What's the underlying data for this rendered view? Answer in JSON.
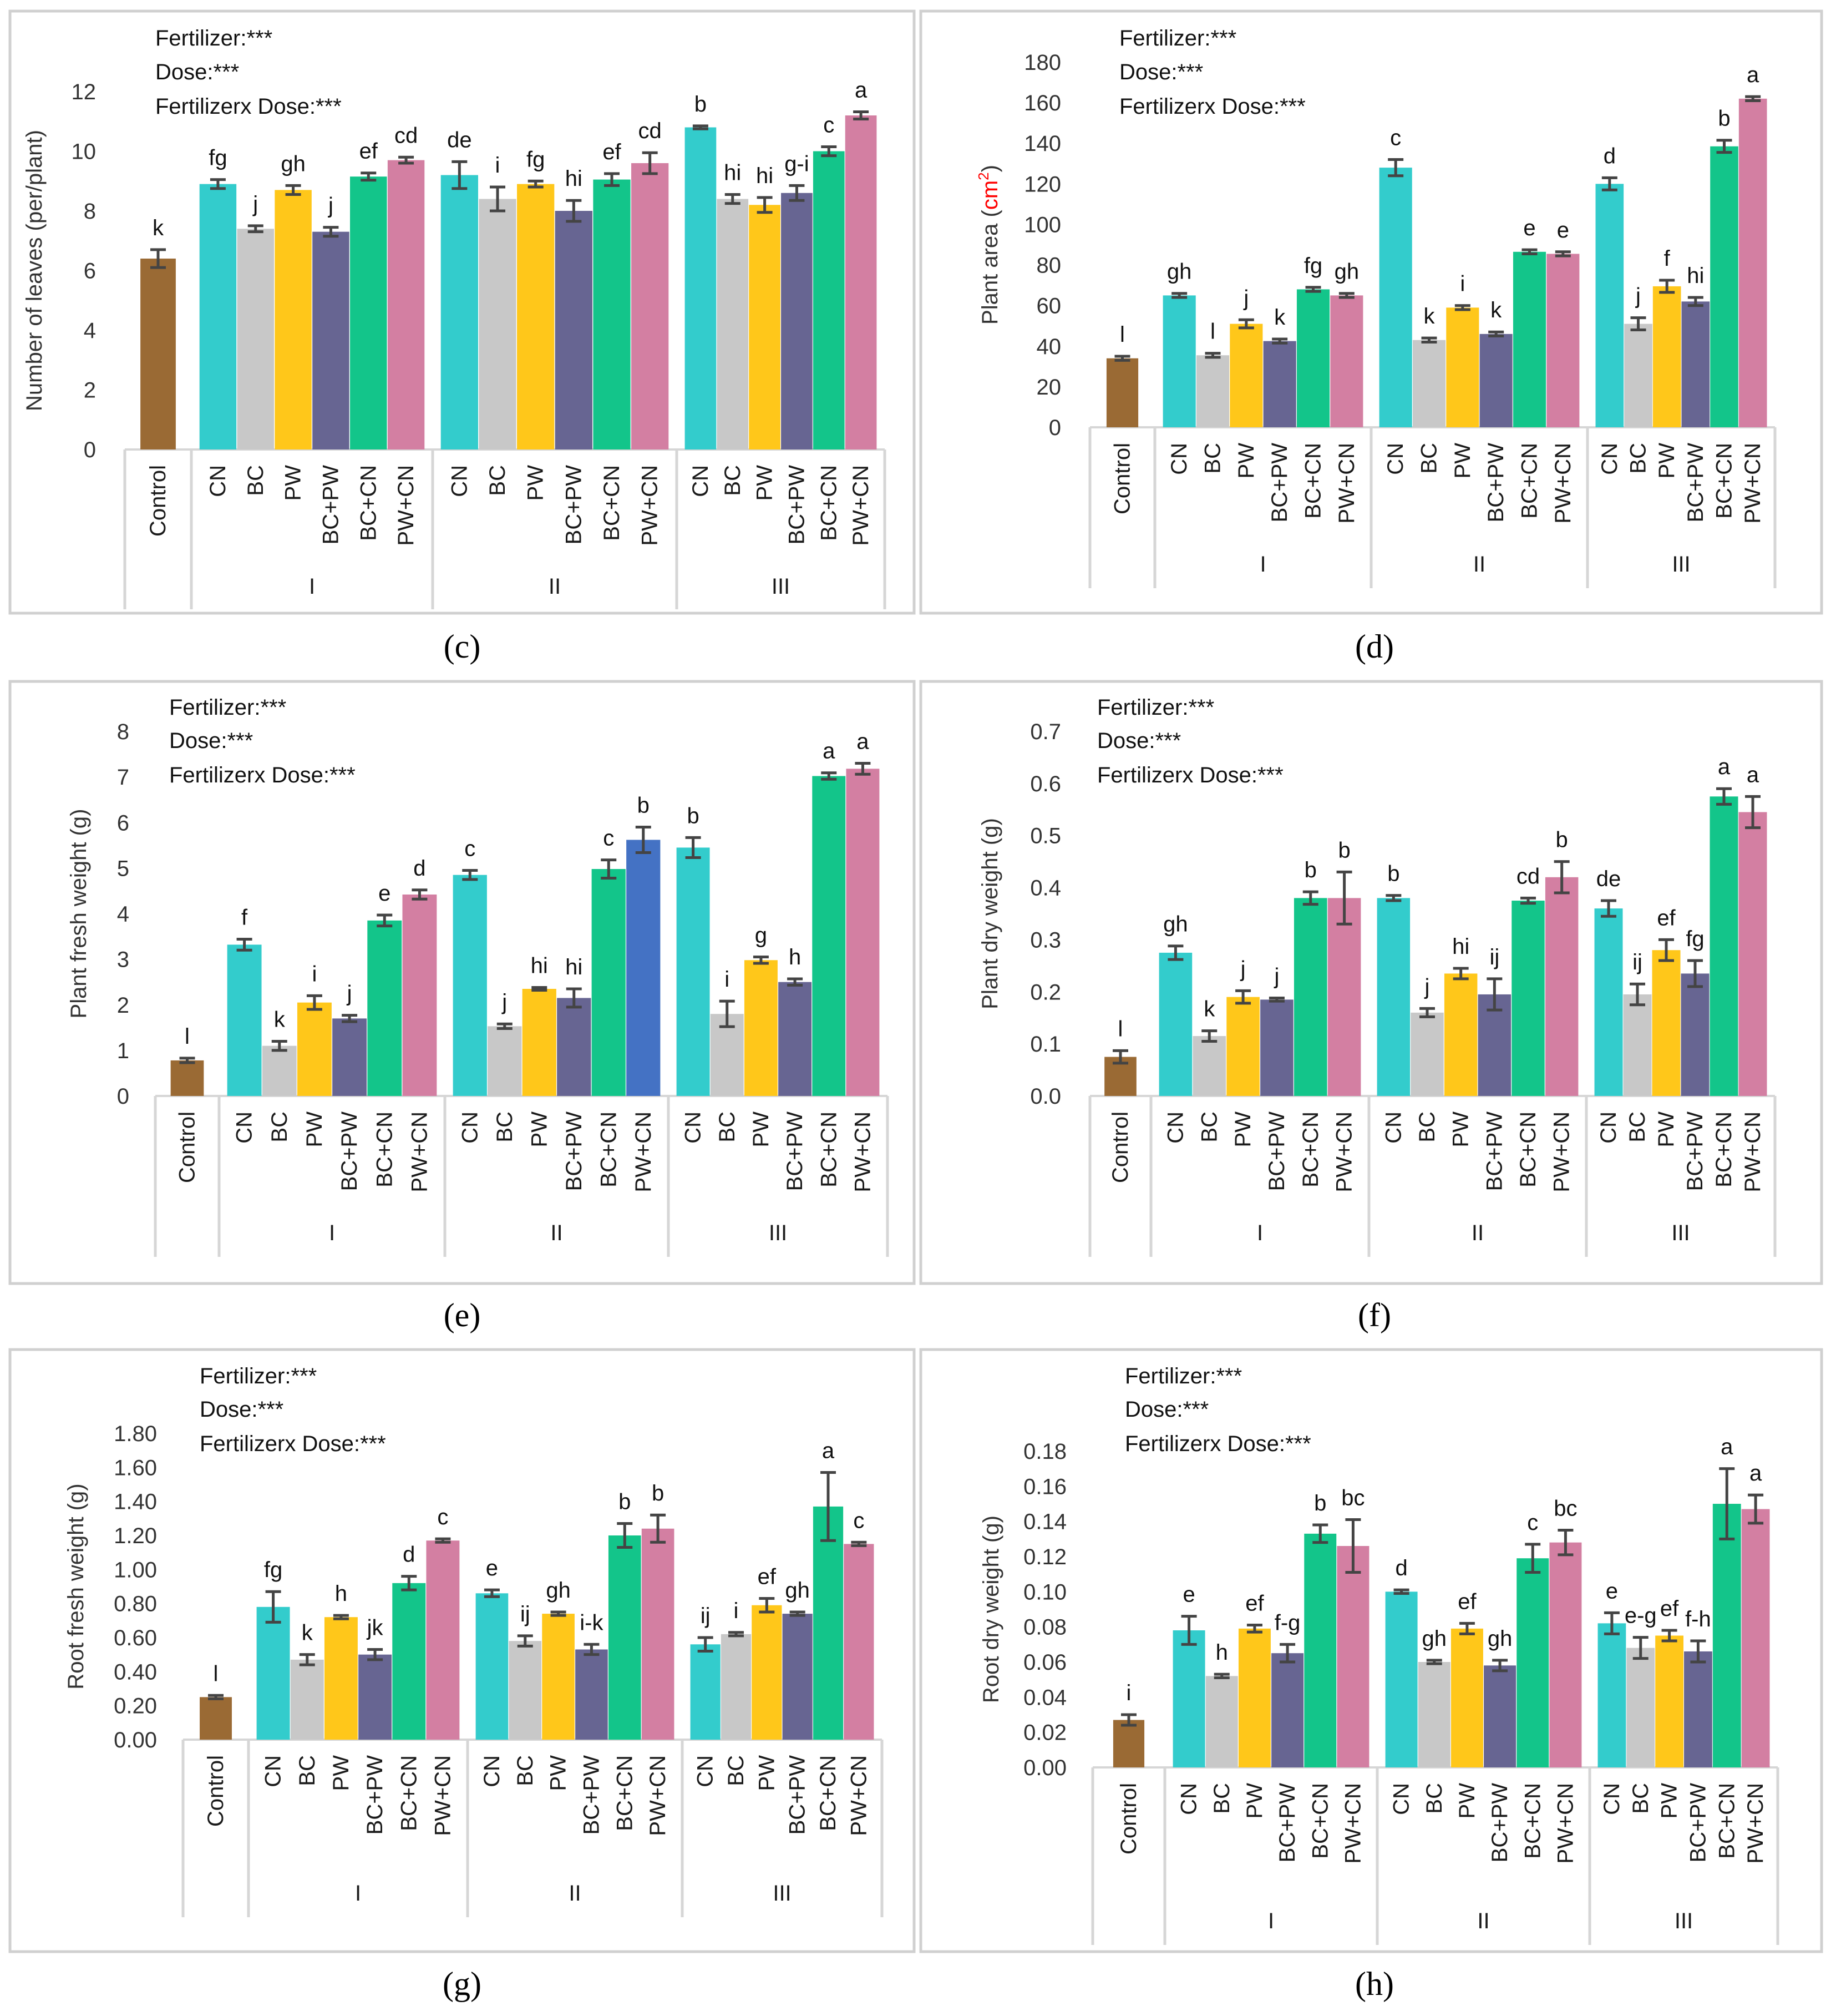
{
  "figure": {
    "panel_letters": [
      "(c)",
      "(d)",
      "(e)",
      "(f)",
      "(g)",
      "(h)"
    ]
  },
  "colors": {
    "Control": "#9a6a34",
    "CN": "#33cccc",
    "BC": "#c8c8c8",
    "PW": "#ffc71a",
    "BC+PW": "#676592",
    "BC+CN": "#13c58a",
    "PW+CN": "#d37fa2",
    "PW+CN_II_fresh": "#4472c4",
    "bar_error": "#444444"
  },
  "chart_data": [
    {
      "type": "bar",
      "panel": "(c)",
      "title": "",
      "ylabel": "Number of leaves (per/plant)",
      "ylim": [
        0,
        12
      ],
      "yticks": [
        "0",
        "2",
        "4",
        "6",
        "8",
        "10",
        "12"
      ],
      "stats": [
        "Fertilizer:***",
        "Dose:***",
        "Fertilizerx Dose:***"
      ],
      "control": {
        "label": "Control",
        "value": 6.4,
        "err": 0.3,
        "letter": "k"
      },
      "categories": [
        "CN",
        "BC",
        "PW",
        "BC+PW",
        "BC+CN",
        "PW+CN"
      ],
      "groups": [
        {
          "name": "I",
          "values": [
            8.9,
            7.4,
            8.7,
            7.3,
            9.15,
            9.7
          ],
          "errors": [
            0.15,
            0.1,
            0.15,
            0.15,
            0.12,
            0.1
          ],
          "letters": [
            "fg",
            "j",
            "gh",
            "j",
            "ef",
            "cd"
          ]
        },
        {
          "name": "II",
          "values": [
            9.2,
            8.4,
            8.9,
            8.0,
            9.05,
            9.6
          ],
          "errors": [
            0.45,
            0.4,
            0.1,
            0.35,
            0.2,
            0.35
          ],
          "letters": [
            "de",
            "i",
            "fg",
            "hi",
            "ef",
            "cd"
          ]
        },
        {
          "name": "III",
          "values": [
            10.8,
            8.4,
            8.2,
            8.6,
            10.0,
            11.2
          ],
          "errors": [
            0.05,
            0.15,
            0.25,
            0.25,
            0.15,
            0.12
          ],
          "letters": [
            "b",
            "hi",
            "hi",
            "g-i",
            "c",
            "a"
          ]
        }
      ]
    },
    {
      "type": "bar",
      "panel": "(d)",
      "title": "",
      "ylabel": "Plant area (",
      "ylabel_unit": "cm",
      "ylabel_sup": "2",
      "ylabel_close": ")",
      "ylim": [
        0,
        180
      ],
      "yticks": [
        "0",
        "20",
        "40",
        "60",
        "80",
        "100",
        "120",
        "140",
        "160",
        "180"
      ],
      "stats": [
        "Fertilizer:***",
        "Dose:***",
        "Fertilizerx Dose:***"
      ],
      "control": {
        "label": "Control",
        "value": 34,
        "err": 1,
        "letter": "l"
      },
      "categories": [
        "CN",
        "BC",
        "PW",
        "BC+PW",
        "BC+CN",
        "PW+CN"
      ],
      "groups": [
        {
          "name": "I",
          "values": [
            65,
            35.5,
            51,
            42.5,
            68,
            65
          ],
          "errors": [
            1,
            1,
            2,
            1,
            1,
            1
          ],
          "letters": [
            "gh",
            "l",
            "j",
            "k",
            "fg",
            "gh"
          ]
        },
        {
          "name": "II",
          "values": [
            128,
            43,
            59,
            46,
            86.5,
            85.5
          ],
          "errors": [
            4,
            1,
            1,
            1,
            1,
            1
          ],
          "letters": [
            "c",
            "k",
            "i",
            "k",
            "e",
            "e"
          ]
        },
        {
          "name": "III",
          "values": [
            120,
            51,
            69.5,
            62,
            138.5,
            162
          ],
          "errors": [
            3,
            3,
            3,
            2,
            3,
            1
          ],
          "letters": [
            "d",
            "j",
            "f",
            "hi",
            "b",
            "a"
          ]
        }
      ]
    },
    {
      "type": "bar",
      "panel": "(e)",
      "title": "",
      "ylabel": "Plant fresh weight (g)",
      "ylim": [
        0,
        8
      ],
      "yticks": [
        "0",
        "1",
        "2",
        "3",
        "4",
        "5",
        "6",
        "7",
        "8"
      ],
      "stats": [
        "Fertilizer:***",
        "Dose:***",
        "Fertilizerx Dose:***"
      ],
      "control": {
        "label": "Control",
        "value": 0.78,
        "err": 0.05,
        "letter": "l"
      },
      "categories": [
        "CN",
        "BC",
        "PW",
        "BC+PW",
        "BC+CN",
        "PW+CN"
      ],
      "groups": [
        {
          "name": "I",
          "values": [
            3.32,
            1.1,
            2.05,
            1.7,
            3.85,
            4.42
          ],
          "errors": [
            0.12,
            0.1,
            0.15,
            0.07,
            0.12,
            0.1
          ],
          "letters": [
            "f",
            "k",
            "i",
            "j",
            "e",
            "d"
          ]
        },
        {
          "name": "II",
          "values": [
            4.85,
            1.53,
            2.35,
            2.15,
            4.98,
            5.62
          ],
          "errors": [
            0.1,
            0.05,
            0.03,
            0.2,
            0.2,
            0.28
          ],
          "letters": [
            "c",
            "j",
            "hi",
            "hi",
            "c",
            "b"
          ]
        },
        {
          "name": "III",
          "values": [
            5.45,
            1.8,
            2.98,
            2.5,
            7.02,
            7.18
          ],
          "errors": [
            0.22,
            0.28,
            0.07,
            0.07,
            0.07,
            0.12
          ],
          "letters": [
            "b",
            "i",
            "g",
            "h",
            "a",
            "a"
          ]
        }
      ]
    },
    {
      "type": "bar",
      "panel": "(f)",
      "title": "",
      "ylabel": "Plant dry weight (g)",
      "ylim": [
        0,
        0.7
      ],
      "yticks": [
        "0.0",
        "0.1",
        "0.2",
        "0.3",
        "0.4",
        "0.5",
        "0.6",
        "0.7"
      ],
      "stats": [
        "Fertilizer:***",
        "Dose:***",
        "Fertilizerx Dose:***"
      ],
      "control": {
        "label": "Control",
        "value": 0.075,
        "err": 0.012,
        "letter": "l"
      },
      "categories": [
        "CN",
        "BC",
        "PW",
        "BC+PW",
        "BC+CN",
        "PW+CN"
      ],
      "groups": [
        {
          "name": "I",
          "values": [
            0.275,
            0.115,
            0.19,
            0.185,
            0.38,
            0.38
          ],
          "errors": [
            0.013,
            0.01,
            0.012,
            0.003,
            0.012,
            0.05
          ],
          "letters": [
            "gh",
            "k",
            "j",
            "j",
            "b",
            "b"
          ]
        },
        {
          "name": "II",
          "values": [
            0.38,
            0.16,
            0.235,
            0.195,
            0.375,
            0.42
          ],
          "errors": [
            0.005,
            0.008,
            0.01,
            0.03,
            0.005,
            0.03
          ],
          "letters": [
            "b",
            "j",
            "hi",
            "ij",
            "cd",
            "b"
          ]
        },
        {
          "name": "III",
          "values": [
            0.36,
            0.195,
            0.28,
            0.235,
            0.575,
            0.545
          ],
          "errors": [
            0.015,
            0.02,
            0.02,
            0.025,
            0.015,
            0.03
          ],
          "letters": [
            "de",
            "ij",
            "ef",
            "fg",
            "a",
            "a"
          ]
        }
      ]
    },
    {
      "type": "bar",
      "panel": "(g)",
      "title": "",
      "ylabel": "Root fresh weight (g)",
      "ylim": [
        0,
        1.8
      ],
      "yticks": [
        "0.00",
        "0.20",
        "0.40",
        "0.60",
        "0.80",
        "1.00",
        "1.20",
        "1.40",
        "1.60",
        "1.80"
      ],
      "stats": [
        "Fertilizer:***",
        "Dose:***",
        "Fertilizerx Dose:***"
      ],
      "control": {
        "label": "Control",
        "value": 0.25,
        "err": 0.01,
        "letter": "l"
      },
      "categories": [
        "CN",
        "BC",
        "PW",
        "BC+PW",
        "BC+CN",
        "PW+CN"
      ],
      "groups": [
        {
          "name": "I",
          "values": [
            0.78,
            0.47,
            0.72,
            0.5,
            0.92,
            1.17
          ],
          "errors": [
            0.09,
            0.03,
            0.01,
            0.03,
            0.04,
            0.01
          ],
          "letters": [
            "fg",
            "k",
            "h",
            "jk",
            "d",
            "c"
          ]
        },
        {
          "name": "II",
          "values": [
            0.86,
            0.58,
            0.74,
            0.53,
            1.2,
            1.24
          ],
          "errors": [
            0.02,
            0.03,
            0.01,
            0.03,
            0.07,
            0.08
          ],
          "letters": [
            "e",
            "ij",
            "gh",
            "i-k",
            "b",
            "b"
          ]
        },
        {
          "name": "III",
          "values": [
            0.56,
            0.62,
            0.79,
            0.74,
            1.37,
            1.15
          ],
          "errors": [
            0.04,
            0.01,
            0.04,
            0.01,
            0.2,
            0.01
          ],
          "letters": [
            "ij",
            "i",
            "ef",
            "gh",
            "a",
            "c"
          ]
        }
      ]
    },
    {
      "type": "bar",
      "panel": "(h)",
      "title": "",
      "ylabel": "Root dry weight (g)",
      "ylim": [
        0,
        0.18
      ],
      "yticks": [
        "0.00",
        "0.02",
        "0.04",
        "0.06",
        "0.08",
        "0.10",
        "0.12",
        "0.14",
        "0.16",
        "0.18"
      ],
      "stats": [
        "Fertilizer:***",
        "Dose:***",
        "Fertilizerx Dose:***"
      ],
      "control": {
        "label": "Control",
        "value": 0.027,
        "err": 0.003,
        "letter": "i"
      },
      "categories": [
        "CN",
        "BC",
        "PW",
        "BC+PW",
        "BC+CN",
        "PW+CN"
      ],
      "groups": [
        {
          "name": "I",
          "values": [
            0.078,
            0.052,
            0.079,
            0.065,
            0.133,
            0.126
          ],
          "errors": [
            0.008,
            0.001,
            0.002,
            0.005,
            0.005,
            0.015
          ],
          "letters": [
            "e",
            "h",
            "ef",
            "f-g",
            "b",
            "bc"
          ]
        },
        {
          "name": "II",
          "values": [
            0.1,
            0.06,
            0.079,
            0.058,
            0.119,
            0.128
          ],
          "errors": [
            0.001,
            0.001,
            0.003,
            0.003,
            0.008,
            0.007
          ],
          "letters": [
            "d",
            "gh",
            "ef",
            "gh",
            "c",
            "bc"
          ]
        },
        {
          "name": "III",
          "values": [
            0.082,
            0.068,
            0.075,
            0.066,
            0.15,
            0.147
          ],
          "errors": [
            0.006,
            0.006,
            0.003,
            0.006,
            0.02,
            0.008
          ],
          "letters": [
            "e",
            "e-g",
            "ef",
            "f-h",
            "a",
            "a"
          ]
        }
      ]
    }
  ]
}
